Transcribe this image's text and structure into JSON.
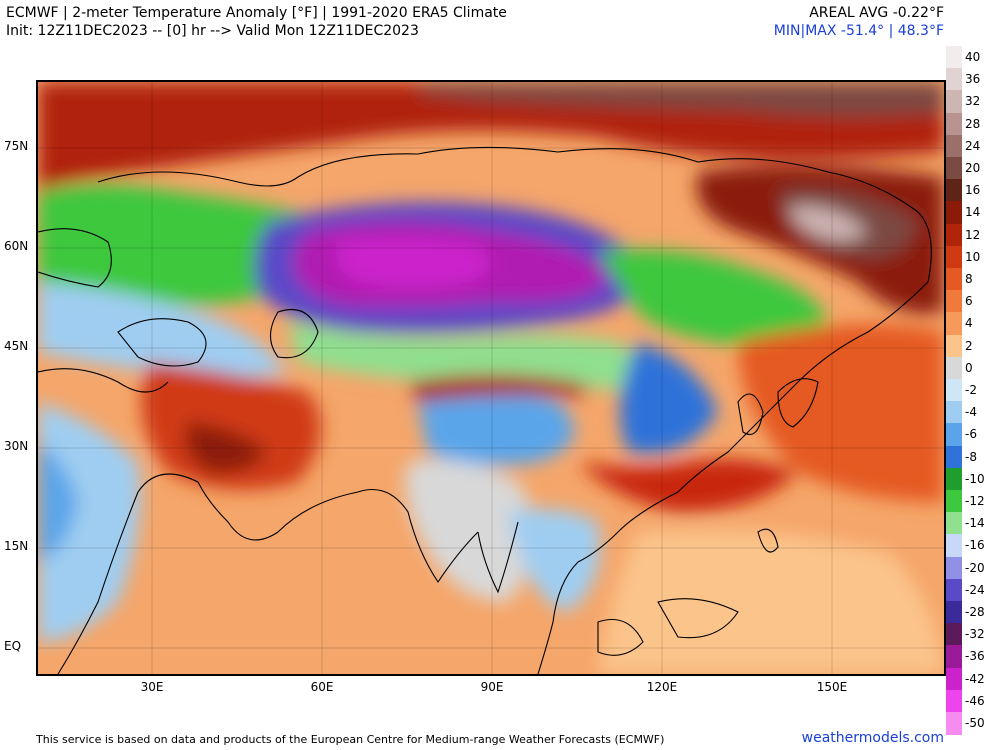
{
  "header": {
    "title_line1": "ECMWF | 2-meter Temperature Anomaly [°F] | 1991-2020 ERA5 Climate",
    "title_line2": "Init: 12Z11DEC2023 -- [0] hr --> Valid Mon 12Z11DEC2023",
    "areal_avg": "AREAL AVG -0.22°F",
    "minmax_prefix": "MIN|MAX",
    "min_value": "-51.4°",
    "max_value": "48.3°F"
  },
  "map": {
    "lat_labels": [
      "75N",
      "60N",
      "45N",
      "30N",
      "15N",
      "EQ"
    ],
    "lon_labels": [
      "30E",
      "60E",
      "90E",
      "120E",
      "150E"
    ],
    "regions": [
      {
        "name": "arctic-warm",
        "anomaly": 18,
        "color": "#7a1a0a"
      },
      {
        "name": "siberia-cold-core",
        "anomaly": -38,
        "color": "#b01ab0"
      },
      {
        "name": "siberia-cold-ring",
        "anomaly": -26,
        "color": "#5a2ab8"
      },
      {
        "name": "central-asia-cool",
        "anomaly": -10,
        "color": "#3ec83e"
      },
      {
        "name": "middle-east-warm",
        "anomaly": 10,
        "color": "#d23a14"
      },
      {
        "name": "tibet-cool",
        "anomaly": -6,
        "color": "#3a7fe0"
      },
      {
        "name": "east-siberia-warm",
        "anomaly": 22,
        "color": "#6a3028"
      },
      {
        "name": "tropics-mild",
        "anomaly": 4,
        "color": "#f5a66a"
      },
      {
        "name": "india-neutral",
        "anomaly": 0,
        "color": "#d8d8d8"
      },
      {
        "name": "china-coast-warm",
        "anomaly": 12,
        "color": "#c8280c"
      }
    ]
  },
  "legend": {
    "labels": [
      "40",
      "36",
      "32",
      "28",
      "24",
      "20",
      "16",
      "14",
      "12",
      "10",
      "8",
      "6",
      "4",
      "2",
      "0",
      "-2",
      "-4",
      "-6",
      "-8",
      "-10",
      "-12",
      "-14",
      "-16",
      "-20",
      "-24",
      "-28",
      "-32",
      "-36",
      "-42",
      "-46",
      "-50"
    ],
    "colors": [
      "#f3ecec",
      "#e1d3d1",
      "#cdb5b3",
      "#b8938f",
      "#9b6f6a",
      "#7b4a42",
      "#5e2418",
      "#8b1a08",
      "#b0240a",
      "#d03a12",
      "#e55a24",
      "#f07a3c",
      "#f59a5a",
      "#fbc48a",
      "#d8d8d8",
      "#cfe6f6",
      "#9fcdf1",
      "#5aa5ea",
      "#2f72d9",
      "#1f9e2e",
      "#3ec83e",
      "#8fe08f",
      "#c8d8f8",
      "#9090e6",
      "#5a4ac8",
      "#3a2a9a",
      "#5c1a5a",
      "#9a1a9a",
      "#cc22cc",
      "#ee44ee",
      "#f68cf0"
    ]
  },
  "footer": {
    "note": "This service is based on data and products of the European Centre for Medium-range Weather Forecasts (ECMWF)",
    "brand": "weathermodels.com"
  }
}
